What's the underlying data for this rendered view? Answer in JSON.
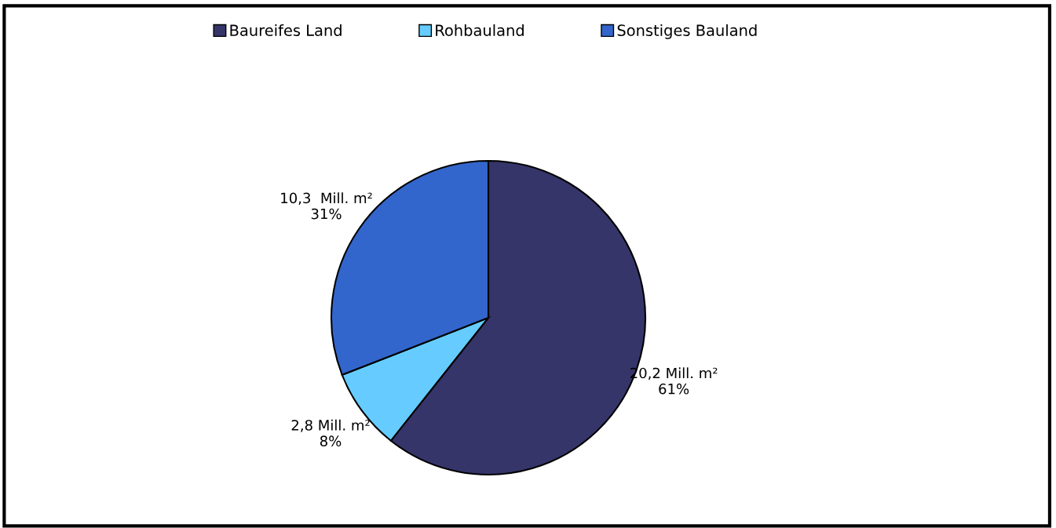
{
  "chart_data": {
    "type": "pie",
    "categories": [
      "Baureifes Land",
      "Rohbauland",
      "Sonstiges Bauland"
    ],
    "values": [
      20.2,
      2.8,
      10.3
    ],
    "colors": [
      "#35356a",
      "#66ccff",
      "#3366cc"
    ],
    "value_labels": [
      "20,2 Mill. m²\n61%",
      "2,8 Mill. m²\n8%",
      "10,3  Mill. m²\n31%"
    ],
    "legend": "top"
  }
}
